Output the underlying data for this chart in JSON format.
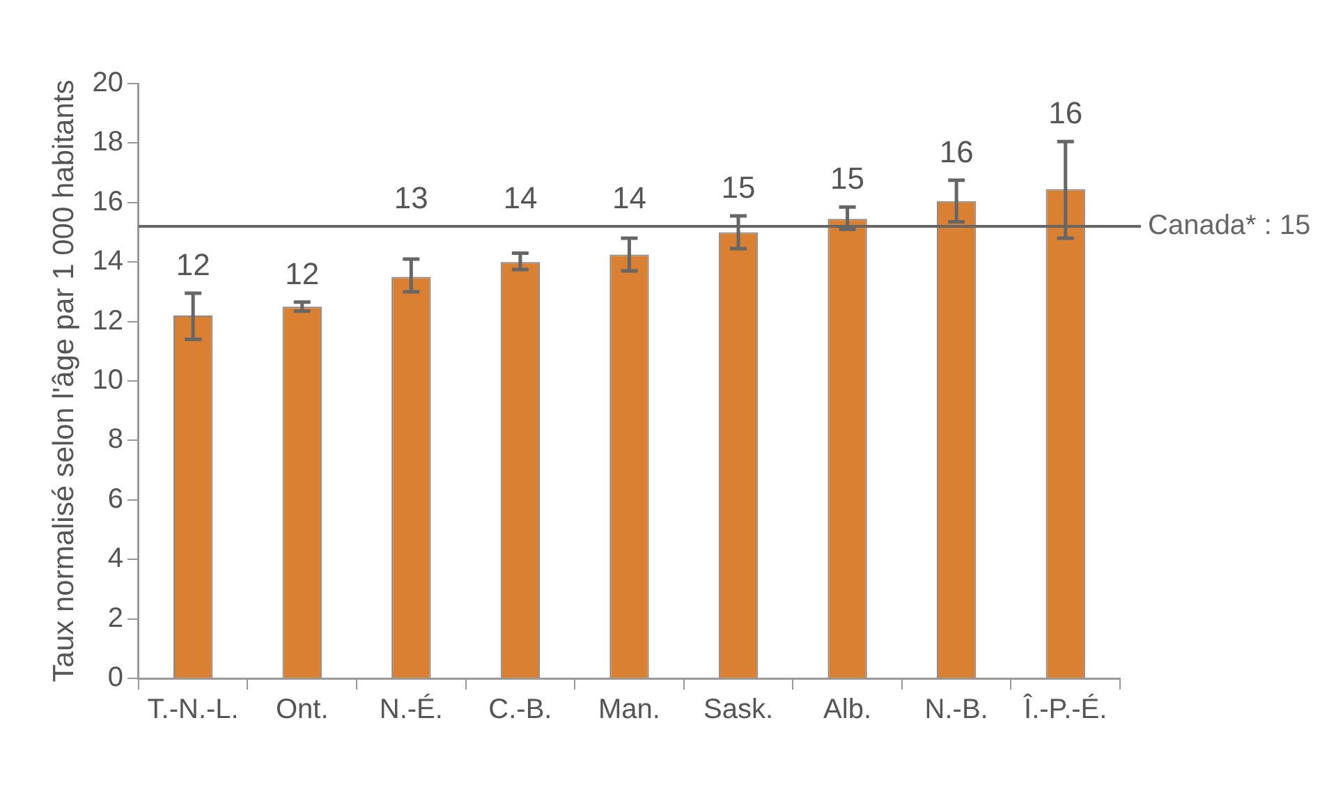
{
  "chart_data": {
    "type": "bar",
    "ylabel": "Taux normalisé selon l'âge par 1 000 habitants",
    "categories": [
      "T.-N.-L.",
      "Ont.",
      "N.-É.",
      "C.-B.",
      "Man.",
      "Sask.",
      "Alb.",
      "N.-B.",
      "Î.-P.-É."
    ],
    "values": [
      12.2,
      12.5,
      13.5,
      14.0,
      14.25,
      15.0,
      15.45,
      16.05,
      16.45
    ],
    "errors": [
      [
        11.4,
        12.95
      ],
      [
        12.35,
        12.65
      ],
      [
        13.0,
        14.1
      ],
      [
        13.75,
        14.3
      ],
      [
        13.7,
        14.8
      ],
      [
        14.45,
        15.55
      ],
      [
        15.1,
        15.85
      ],
      [
        15.35,
        16.75
      ],
      [
        14.8,
        18.05
      ]
    ],
    "value_labels": [
      "12",
      "12",
      "13",
      "14",
      "14",
      "15",
      "15",
      "16",
      "16"
    ],
    "color": "#d98032",
    "ylim": [
      0,
      20
    ],
    "yticks": [
      0,
      2,
      4,
      6,
      8,
      10,
      12,
      14,
      16,
      18,
      20
    ],
    "ref_lines": [
      {
        "axis": "y",
        "value": 15.2,
        "label": "Canada* : 15",
        "color": "#666666"
      }
    ],
    "grid": false,
    "legend": false
  }
}
